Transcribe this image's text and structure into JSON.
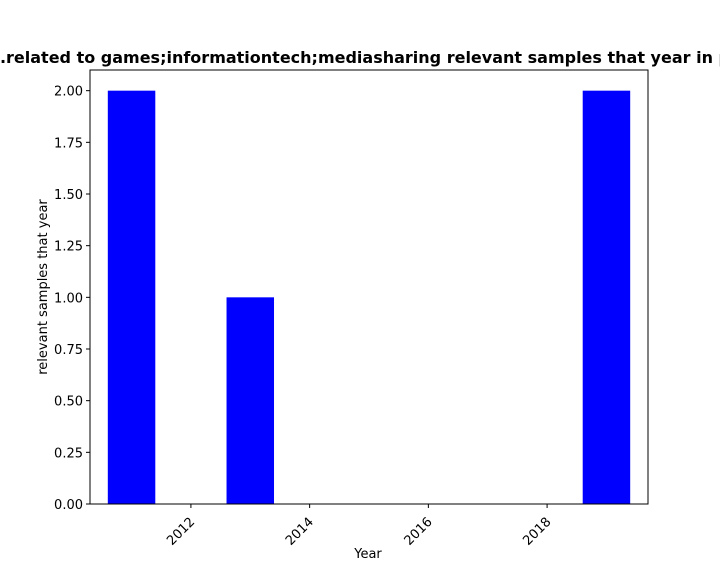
{
  "chart_data": {
    "type": "bar",
    "title": "...related to games;informationtech;mediasharing relevant samples that year in p...",
    "xlabel": "Year",
    "ylabel": "relevant samples that year",
    "x": [
      2011,
      2013,
      2019
    ],
    "values": [
      2,
      1,
      2
    ],
    "bar_width_years": 0.8,
    "xlim": [
      2010.3,
      2019.7
    ],
    "ylim": [
      0,
      2.1
    ],
    "x_ticks": [
      2012,
      2014,
      2016,
      2018
    ],
    "x_tick_labels": [
      "2012",
      "2014",
      "2016",
      "2018"
    ],
    "y_ticks": [
      0,
      0.25,
      0.5,
      0.75,
      1.0,
      1.25,
      1.5,
      1.75,
      2.0
    ],
    "y_tick_labels": [
      "0.00",
      "0.25",
      "0.50",
      "0.75",
      "1.00",
      "1.25",
      "1.50",
      "1.75",
      "2.00"
    ],
    "bar_color": "#0000ff",
    "grid": false,
    "legend": "none"
  }
}
